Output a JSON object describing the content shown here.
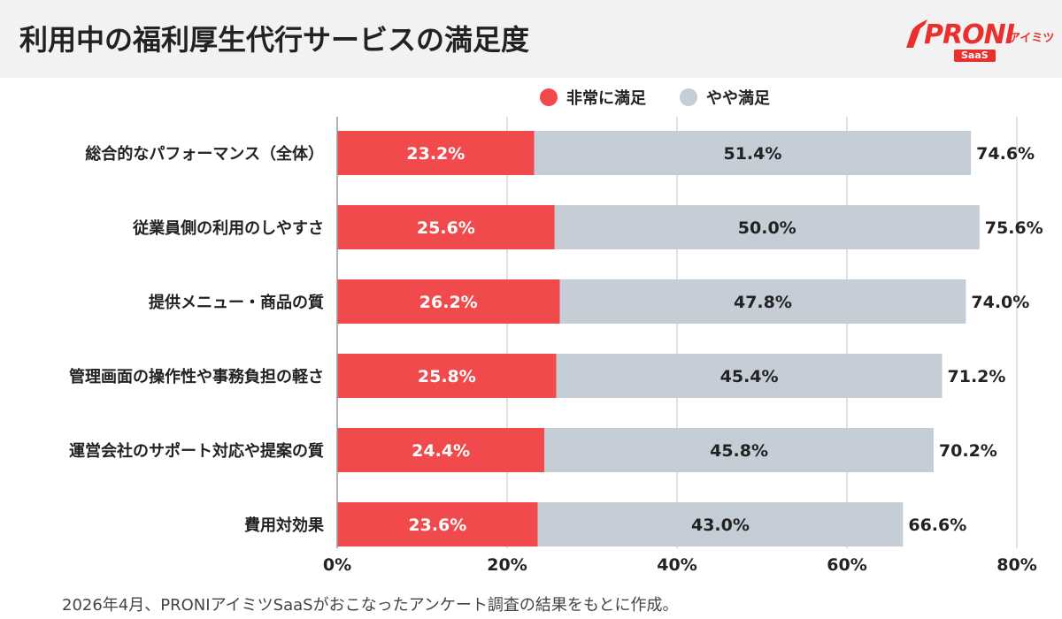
{
  "header": {
    "title": "利用中の福利厚生代行サービスの満足度"
  },
  "logo": {
    "brand": "PRONI",
    "sub": "アイミツ",
    "badge": "SaaS"
  },
  "colors": {
    "very_satisfied": "#f04a4d",
    "somewhat_satisfied": "#c5cdd6",
    "grid": "#d9d9d9",
    "text": "#222222"
  },
  "chart_data": {
    "type": "bar",
    "orientation": "horizontal",
    "stacked": true,
    "categories": [
      "総合的なパフォーマンス（全体）",
      "従業員側の利用のしやすさ",
      "提供メニュー・商品の質",
      "管理画面の操作性や事務負担の軽さ",
      "運営会社のサポート対応や提案の質",
      "費用対効果"
    ],
    "series": [
      {
        "name": "非常に満足",
        "values": [
          23.2,
          25.6,
          26.2,
          25.8,
          24.4,
          23.6
        ]
      },
      {
        "name": "やや満足",
        "values": [
          51.4,
          50.0,
          47.8,
          45.4,
          45.8,
          43.0
        ]
      }
    ],
    "data_labels": [
      [
        "23.2%",
        "25.6%",
        "26.2%",
        "25.8%",
        "24.4%",
        "23.6%"
      ],
      [
        "51.4%",
        "50.0%",
        "47.8%",
        "45.4%",
        "45.8%",
        "43.0%"
      ]
    ],
    "total_labels": [
      "74.6%",
      "75.6%",
      "74.0%",
      "71.2%",
      "70.2%",
      "66.6%"
    ],
    "xlim": [
      0,
      80
    ],
    "xticks": [
      0,
      20,
      40,
      60,
      80
    ],
    "xtick_labels": [
      "0%",
      "20%",
      "40%",
      "60%",
      "80%"
    ],
    "grid": true,
    "legend_position": "top"
  },
  "footnote": "2026年4月、PRONIアイミツSaaSがおこなったアンケート調査の結果をもとに作成。"
}
